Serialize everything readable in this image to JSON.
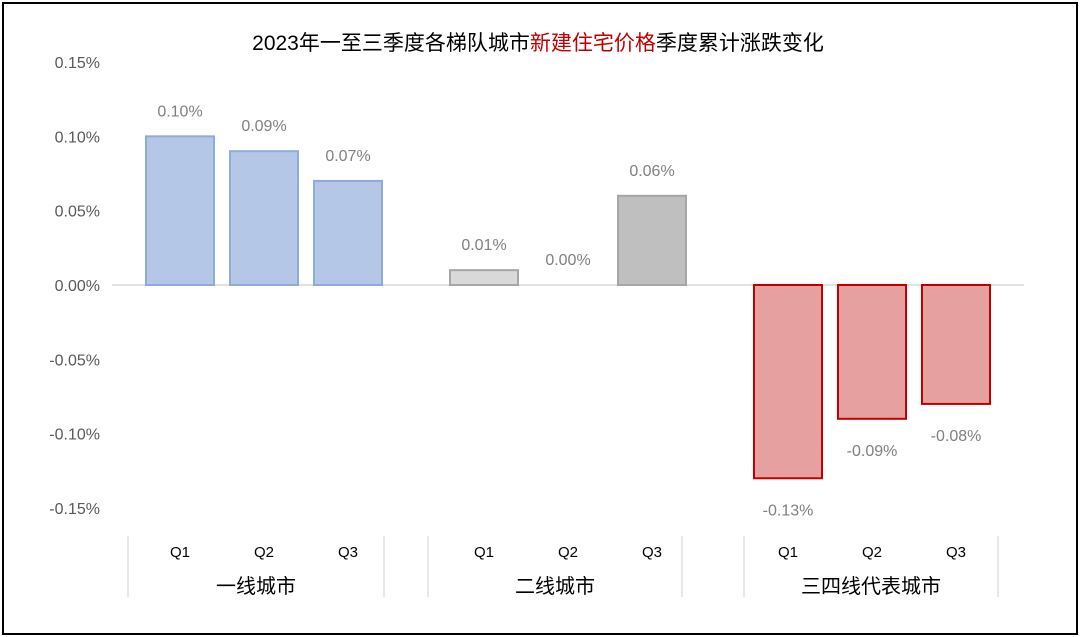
{
  "chart_data": {
    "type": "bar",
    "title": "2023年一至三季度各梯队城市新建住宅价格季度累计涨跌变化",
    "title_parts": [
      {
        "text": "2023年一至三季度各梯队城市",
        "color": "#000000"
      },
      {
        "text": "新建住宅价格",
        "color": "#c00000"
      },
      {
        "text": "季度累计涨跌变化",
        "color": "#000000"
      }
    ],
    "ylim": [
      -0.15,
      0.15
    ],
    "yticks": [
      "0.15%",
      "0.10%",
      "0.05%",
      "0.00%",
      "-0.05%",
      "-0.10%",
      "-0.15%"
    ],
    "grid": false,
    "groups": [
      {
        "name": "一线城市",
        "quarters": [
          "Q1",
          "Q2",
          "Q3"
        ],
        "values": [
          0.1,
          0.09,
          0.07
        ],
        "labels": [
          "0.10%",
          "0.09%",
          "0.07%"
        ],
        "fill": "#b4c7e7",
        "stroke": "#8faadc"
      },
      {
        "name": "二线城市",
        "quarters": [
          "Q1",
          "Q2",
          "Q3"
        ],
        "values": [
          0.01,
          0.0,
          0.06
        ],
        "labels": [
          "0.01%",
          "0.00%",
          "0.06%"
        ],
        "fill": "#d9d9d9",
        "stroke": "#a6a6a6",
        "fills": [
          "#d9d9d9",
          "#d9d9d9",
          "#bfbfbf"
        ]
      },
      {
        "name": "三四线代表城市",
        "quarters": [
          "Q1",
          "Q2",
          "Q3"
        ],
        "values": [
          -0.13,
          -0.09,
          -0.08
        ],
        "labels": [
          "-0.13%",
          "-0.09%",
          "-0.08%"
        ],
        "fill": "#e6a0a0",
        "stroke": "#c00000"
      }
    ]
  }
}
